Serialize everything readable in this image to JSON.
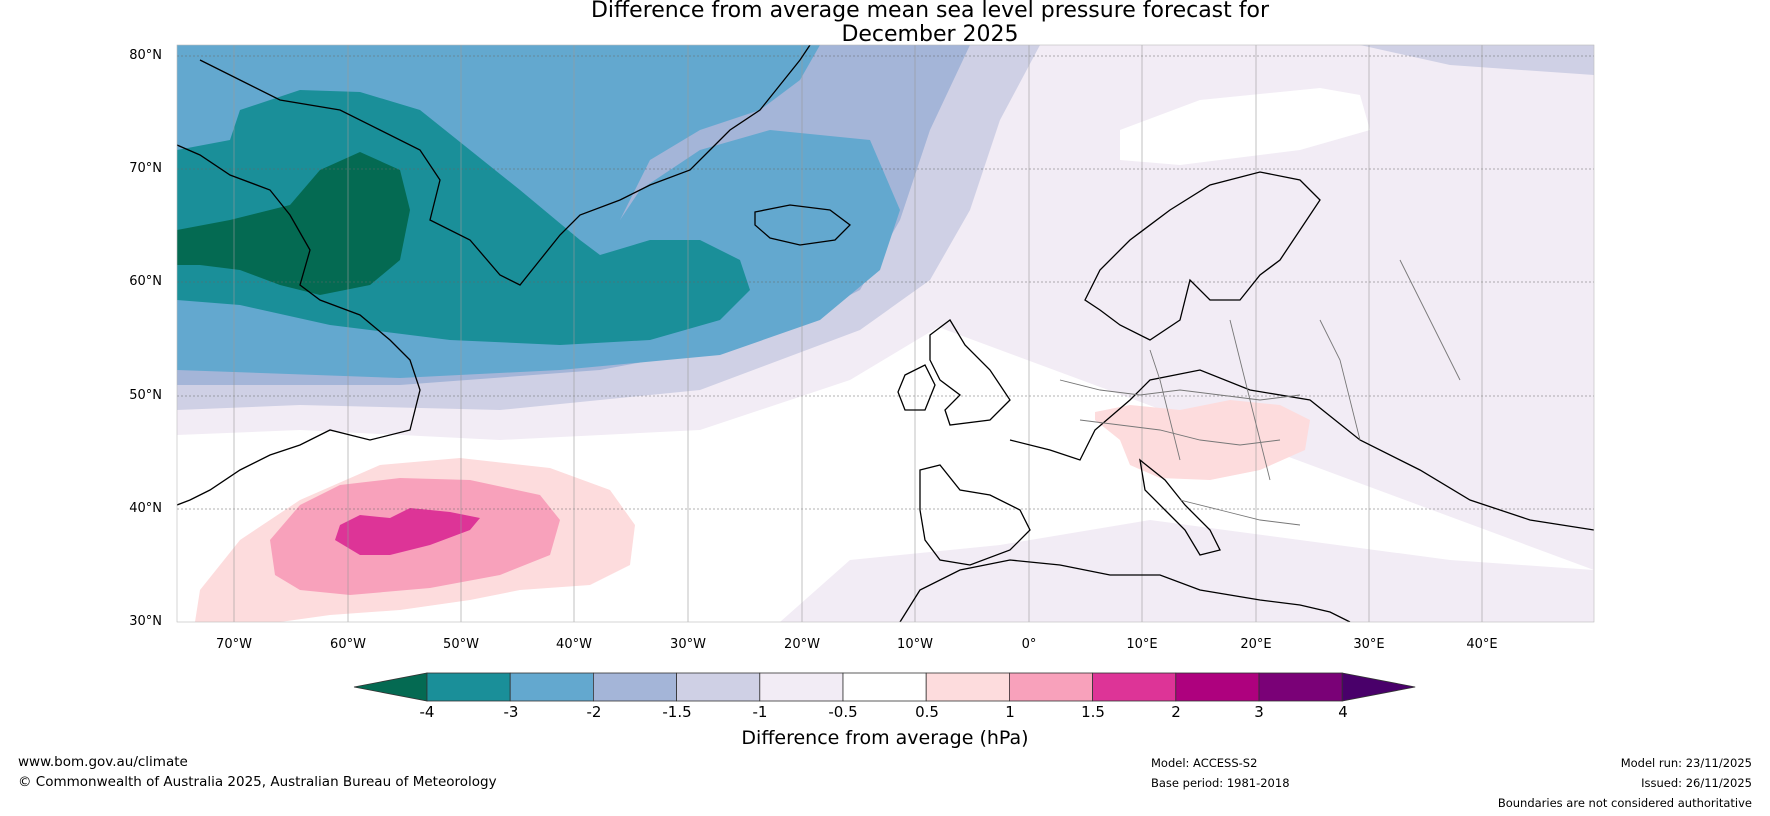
{
  "title": {
    "line1": "Difference from average mean sea level pressure forecast for",
    "line2": "December 2025"
  },
  "map": {
    "lat_labels": [
      "80°N",
      "70°N",
      "60°N",
      "50°N",
      "40°N",
      "30°N"
    ],
    "lon_labels": [
      "70°W",
      "60°W",
      "50°W",
      "40°W",
      "30°W",
      "20°W",
      "10°W",
      "0°",
      "10°E",
      "20°E",
      "30°E",
      "40°E"
    ],
    "lat_range": [
      30,
      80
    ],
    "lon_range": [
      -75,
      50
    ]
  },
  "colorbar": {
    "ticks": [
      "-4",
      "-3",
      "-2",
      "-1.5",
      "-1",
      "-0.5",
      "0.5",
      "1",
      "1.5",
      "2",
      "3",
      "4"
    ],
    "colors": [
      "#046a52",
      "#1a8f99",
      "#63a8cf",
      "#a4b5d8",
      "#cfd0e5",
      "#f2ecf5",
      "#ffffff",
      "#fddcdd",
      "#f8a1bb",
      "#dd3497",
      "#ae017e",
      "#7a0177",
      "#49006a"
    ],
    "label": "Difference from average (hPa)"
  },
  "footer": {
    "url": "www.bom.gov.au/climate",
    "copyright": "© Commonwealth of Australia 2025, Australian Bureau of Meteorology",
    "model": "Model: ACCESS-S2",
    "base_period": "Base period: 1981-2018",
    "model_run": "Model run: 23/11/2025",
    "issued": "Issued: 26/11/2025",
    "disclaimer": "Boundaries are not considered authoritative"
  }
}
